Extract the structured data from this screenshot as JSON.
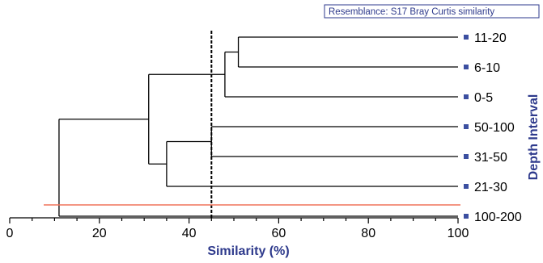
{
  "chart_data": {
    "type": "dendrogram",
    "annotation": "Resemblance: S17 Bray Curtis similarity",
    "xlabel": "Similarity (%)",
    "ylabel": "Depth Interval",
    "xlim": [
      0,
      100
    ],
    "xticks": [
      0,
      20,
      40,
      60,
      80,
      100
    ],
    "leaves": [
      "11-20",
      "6-10",
      "0-5",
      "50-100",
      "31-50",
      "21-30",
      "100-200"
    ],
    "merges": [
      {
        "id": "A",
        "children": [
          "11-20",
          "6-10"
        ],
        "similarity": 51
      },
      {
        "id": "B",
        "children": [
          "A",
          "0-5"
        ],
        "similarity": 48
      },
      {
        "id": "C",
        "children": [
          "50-100",
          "31-50"
        ],
        "similarity": 45
      },
      {
        "id": "D",
        "children": [
          "C",
          "21-30"
        ],
        "similarity": 35
      },
      {
        "id": "E",
        "children": [
          "B",
          "D"
        ],
        "similarity": 31
      },
      {
        "id": "F",
        "children": [
          "E",
          "100-200"
        ],
        "similarity": 11
      }
    ],
    "cut_line_similarity": 45,
    "colors": {
      "branches": "#000000",
      "cut_line": "#000000",
      "separator_line": "#f0735a",
      "leaf_marker": "#3b4fa0",
      "axis_title": "#2e3a8c",
      "annotation_border": "#2e3a8c"
    }
  }
}
